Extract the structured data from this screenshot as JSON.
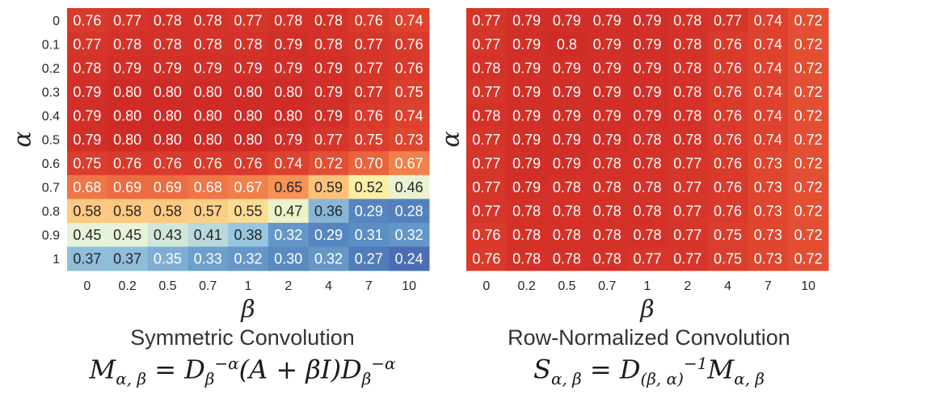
{
  "chart_data": [
    {
      "type": "heatmap",
      "title": "Symmetric Convolution",
      "formula": "M_{α,β} = D_β^{-α}(A + βI)D_β^{-α}",
      "xlabel": "β",
      "ylabel": "α",
      "x_ticks": [
        "0",
        "0.2",
        "0.5",
        "0.7",
        "1",
        "2",
        "4",
        "7",
        "10"
      ],
      "y_ticks": [
        "0",
        "0.1",
        "0.2",
        "0.3",
        "0.4",
        "0.5",
        "0.6",
        "0.7",
        "0.8",
        "0.9",
        "1"
      ],
      "values": [
        [
          0.76,
          0.77,
          0.78,
          0.78,
          0.77,
          0.78,
          0.78,
          0.76,
          0.74
        ],
        [
          0.77,
          0.78,
          0.78,
          0.78,
          0.78,
          0.79,
          0.78,
          0.77,
          0.76
        ],
        [
          0.78,
          0.79,
          0.79,
          0.79,
          0.79,
          0.79,
          0.79,
          0.77,
          0.76
        ],
        [
          0.79,
          0.8,
          0.8,
          0.8,
          0.8,
          0.8,
          0.79,
          0.77,
          0.75
        ],
        [
          0.79,
          0.8,
          0.8,
          0.8,
          0.8,
          0.8,
          0.79,
          0.76,
          0.74
        ],
        [
          0.79,
          0.8,
          0.8,
          0.8,
          0.8,
          0.79,
          0.77,
          0.75,
          0.73
        ],
        [
          0.75,
          0.76,
          0.76,
          0.76,
          0.76,
          0.74,
          0.72,
          0.7,
          0.67
        ],
        [
          0.68,
          0.69,
          0.69,
          0.68,
          0.67,
          0.65,
          0.59,
          0.52,
          0.46
        ],
        [
          0.58,
          0.58,
          0.58,
          0.57,
          0.55,
          0.47,
          0.36,
          0.29,
          0.28
        ],
        [
          0.45,
          0.45,
          0.43,
          0.41,
          0.38,
          0.32,
          0.29,
          0.31,
          0.32
        ],
        [
          0.37,
          0.37,
          0.35,
          0.33,
          0.32,
          0.3,
          0.32,
          0.27,
          0.24
        ]
      ],
      "labels": [
        [
          "0.76",
          "0.77",
          "0.78",
          "0.78",
          "0.77",
          "0.78",
          "0.78",
          "0.76",
          "0.74"
        ],
        [
          "0.77",
          "0.78",
          "0.78",
          "0.78",
          "0.78",
          "0.79",
          "0.78",
          "0.77",
          "0.76"
        ],
        [
          "0.78",
          "0.79",
          "0.79",
          "0.79",
          "0.79",
          "0.79",
          "0.79",
          "0.77",
          "0.76"
        ],
        [
          "0.79",
          "0.80",
          "0.80",
          "0.80",
          "0.80",
          "0.80",
          "0.79",
          "0.77",
          "0.75"
        ],
        [
          "0.79",
          "0.80",
          "0.80",
          "0.80",
          "0.80",
          "0.80",
          "0.79",
          "0.76",
          "0.74"
        ],
        [
          "0.79",
          "0.80",
          "0.80",
          "0.80",
          "0.80",
          "0.79",
          "0.77",
          "0.75",
          "0.73"
        ],
        [
          "0.75",
          "0.76",
          "0.76",
          "0.76",
          "0.76",
          "0.74",
          "0.72",
          "0.70",
          "0.67"
        ],
        [
          "0.68",
          "0.69",
          "0.69",
          "0.68",
          "0.67",
          "0.65",
          "0.59",
          "0.52",
          "0.46"
        ],
        [
          "0.58",
          "0.58",
          "0.58",
          "0.57",
          "0.55",
          "0.47",
          "0.36",
          "0.29",
          "0.28"
        ],
        [
          "0.45",
          "0.45",
          "0.43",
          "0.41",
          "0.38",
          "0.32",
          "0.29",
          "0.31",
          "0.32"
        ],
        [
          "0.37",
          "0.37",
          "0.35",
          "0.33",
          "0.32",
          "0.30",
          "0.32",
          "0.27",
          "0.24"
        ]
      ]
    },
    {
      "type": "heatmap",
      "title": "Row-Normalized Convolution",
      "formula": "S_{α,β} = D_{(β,α)}^{-1} M_{α,β}",
      "xlabel": "β",
      "ylabel": "α",
      "x_ticks": [
        "0",
        "0.2",
        "0.5",
        "0.7",
        "1",
        "2",
        "4",
        "7",
        "10"
      ],
      "y_ticks": [],
      "values": [
        [
          0.77,
          0.79,
          0.79,
          0.79,
          0.79,
          0.78,
          0.77,
          0.74,
          0.72
        ],
        [
          0.77,
          0.79,
          0.8,
          0.79,
          0.79,
          0.78,
          0.76,
          0.74,
          0.72
        ],
        [
          0.78,
          0.79,
          0.79,
          0.79,
          0.79,
          0.78,
          0.76,
          0.74,
          0.72
        ],
        [
          0.77,
          0.79,
          0.79,
          0.79,
          0.79,
          0.78,
          0.76,
          0.74,
          0.72
        ],
        [
          0.78,
          0.79,
          0.79,
          0.79,
          0.79,
          0.78,
          0.76,
          0.74,
          0.72
        ],
        [
          0.77,
          0.79,
          0.79,
          0.79,
          0.78,
          0.78,
          0.76,
          0.74,
          0.72
        ],
        [
          0.77,
          0.79,
          0.79,
          0.78,
          0.78,
          0.77,
          0.76,
          0.73,
          0.72
        ],
        [
          0.77,
          0.79,
          0.78,
          0.78,
          0.78,
          0.77,
          0.76,
          0.73,
          0.72
        ],
        [
          0.77,
          0.78,
          0.78,
          0.78,
          0.78,
          0.77,
          0.76,
          0.73,
          0.72
        ],
        [
          0.76,
          0.78,
          0.78,
          0.78,
          0.78,
          0.77,
          0.75,
          0.73,
          0.72
        ],
        [
          0.76,
          0.78,
          0.78,
          0.78,
          0.77,
          0.77,
          0.75,
          0.73,
          0.72
        ]
      ],
      "labels": [
        [
          "0.77",
          "0.79",
          "0.79",
          "0.79",
          "0.79",
          "0.78",
          "0.77",
          "0.74",
          "0.72"
        ],
        [
          "0.77",
          "0.79",
          "0.8",
          "0.79",
          "0.79",
          "0.78",
          "0.76",
          "0.74",
          "0.72"
        ],
        [
          "0.78",
          "0.79",
          "0.79",
          "0.79",
          "0.79",
          "0.78",
          "0.76",
          "0.74",
          "0.72"
        ],
        [
          "0.77",
          "0.79",
          "0.79",
          "0.79",
          "0.79",
          "0.78",
          "0.76",
          "0.74",
          "0.72"
        ],
        [
          "0.78",
          "0.79",
          "0.79",
          "0.79",
          "0.79",
          "0.78",
          "0.76",
          "0.74",
          "0.72"
        ],
        [
          "0.77",
          "0.79",
          "0.79",
          "0.79",
          "0.78",
          "0.78",
          "0.76",
          "0.74",
          "0.72"
        ],
        [
          "0.77",
          "0.79",
          "0.79",
          "0.78",
          "0.78",
          "0.77",
          "0.76",
          "0.73",
          "0.72"
        ],
        [
          "0.77",
          "0.79",
          "0.78",
          "0.78",
          "0.78",
          "0.77",
          "0.76",
          "0.73",
          "0.72"
        ],
        [
          "0.77",
          "0.78",
          "0.78",
          "0.78",
          "0.78",
          "0.77",
          "0.76",
          "0.73",
          "0.72"
        ],
        [
          "0.76",
          "0.78",
          "0.78",
          "0.78",
          "0.78",
          "0.77",
          "0.75",
          "0.73",
          "0.72"
        ],
        [
          "0.76",
          "0.78",
          "0.78",
          "0.78",
          "0.77",
          "0.77",
          "0.75",
          "0.73",
          "0.72"
        ]
      ]
    }
  ],
  "colormap": {
    "domain": [
      0.24,
      0.8
    ],
    "stops": [
      "#4a6db5",
      "#5b8fc4",
      "#98c6df",
      "#e6f3d8",
      "#fbeea5",
      "#fdc27a",
      "#f58a4f",
      "#e0452e",
      "#cf2b27"
    ]
  }
}
